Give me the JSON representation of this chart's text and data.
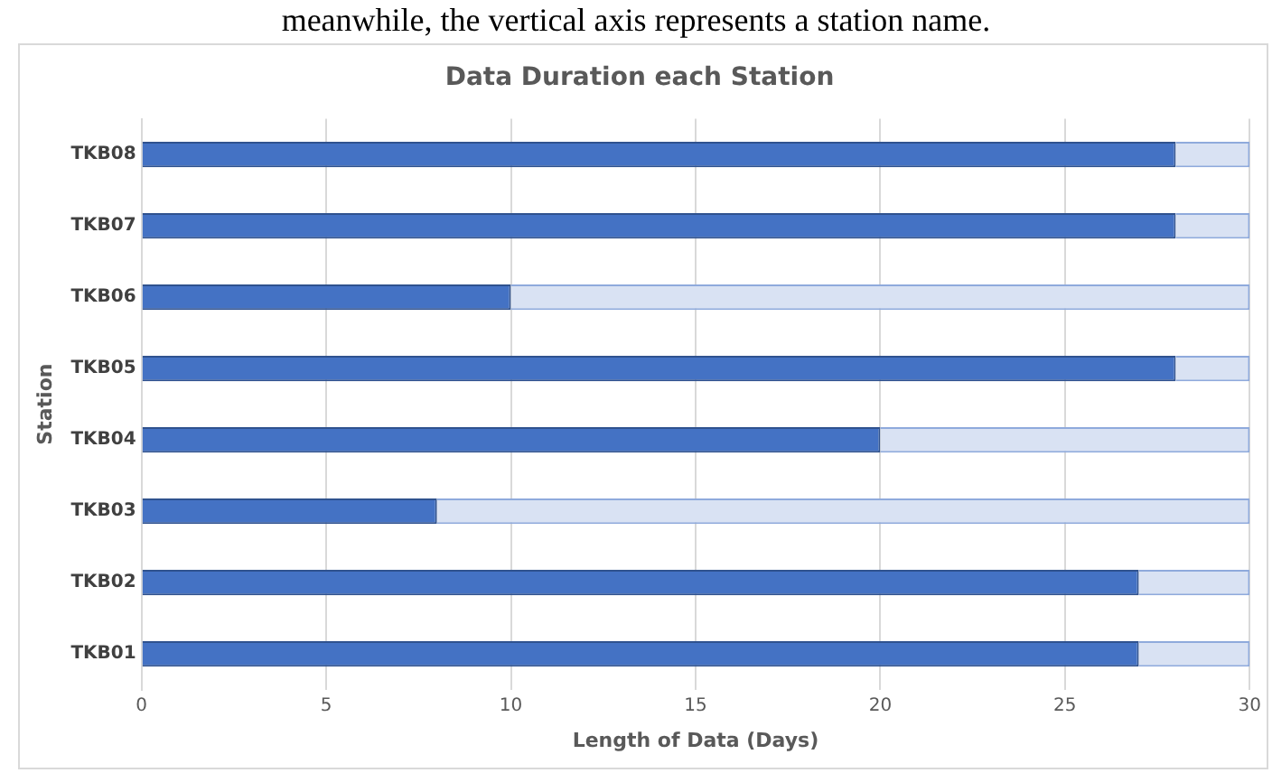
{
  "chart_data": {
    "type": "bar",
    "orientation": "horizontal",
    "title": "Data Duration each Station",
    "xlabel": "Length of Data (Days)",
    "ylabel": "Station",
    "annotations": [
      "meanwhile, the vertical axis represents a station name."
    ],
    "categories": [
      "TKB08",
      "TKB07",
      "TKB06",
      "TKB05",
      "TKB04",
      "TKB03",
      "TKB02",
      "TKB01"
    ],
    "series": [
      {
        "color": "#4472c4",
        "values": [
          28,
          28,
          10,
          28,
          20,
          8,
          27,
          27
        ]
      },
      {
        "color": "#d9e2f3",
        "values": [
          2,
          2,
          20,
          2,
          10,
          22,
          3,
          3
        ]
      }
    ],
    "stacked": true,
    "xlim": [
      0,
      30
    ],
    "xticks": [
      0,
      5,
      10,
      15,
      20,
      25,
      30
    ],
    "grid": "x",
    "legend": false
  }
}
